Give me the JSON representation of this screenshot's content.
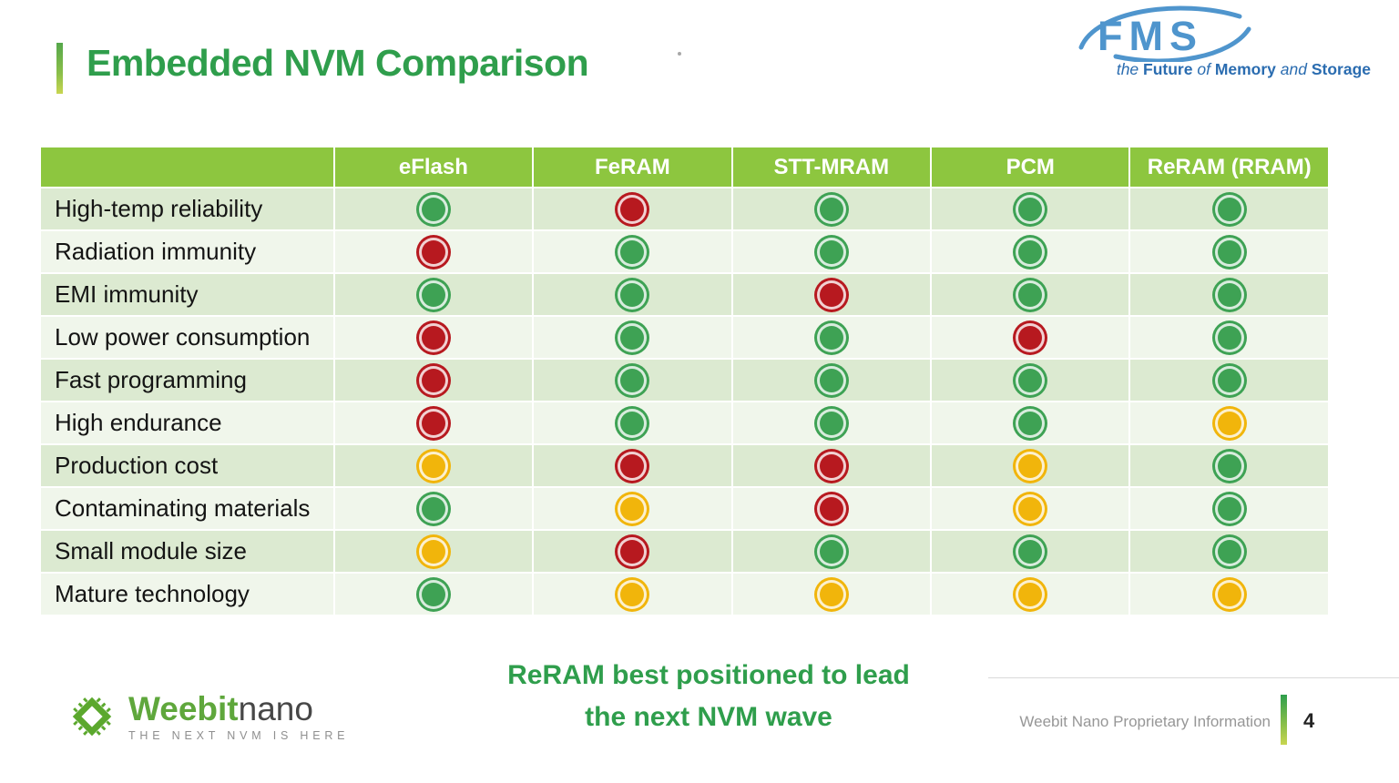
{
  "slide": {
    "title": "Embedded NVM Comparison",
    "page_number": "4"
  },
  "theme": {
    "accent_green": "#2f9e4c",
    "header_green": "#8dc63f",
    "row_dark_bg": "#dcead1",
    "row_light_bg": "#f0f6eb",
    "fms_blue": "#4f95cd",
    "fms_tagline_blue": "#2a6cb0",
    "weebit_green": "#5fa73c"
  },
  "fms_logo": {
    "acronym": "FMS",
    "tagline": [
      {
        "text": "the ",
        "emphasis": "italic"
      },
      {
        "text": "Future ",
        "emphasis": "bold"
      },
      {
        "text": "of ",
        "emphasis": "italic"
      },
      {
        "text": "Memory ",
        "emphasis": "bold"
      },
      {
        "text": "and ",
        "emphasis": "italic"
      },
      {
        "text": "Storage",
        "emphasis": "bold"
      }
    ]
  },
  "table": {
    "columns": [
      "eFlash",
      "FeRAM",
      "STT-MRAM",
      "PCM",
      "ReRAM (RRAM)"
    ],
    "rating_colors": {
      "green": "#3ea254",
      "red": "#b7191f",
      "yellow": "#f1b50b"
    },
    "rows": [
      {
        "label": "High-temp reliability",
        "ratings": [
          "green",
          "red",
          "green",
          "green",
          "green"
        ]
      },
      {
        "label": "Radiation immunity",
        "ratings": [
          "red",
          "green",
          "green",
          "green",
          "green"
        ]
      },
      {
        "label": "EMI immunity",
        "ratings": [
          "green",
          "green",
          "red",
          "green",
          "green"
        ]
      },
      {
        "label": "Low power consumption",
        "ratings": [
          "red",
          "green",
          "green",
          "red",
          "green"
        ]
      },
      {
        "label": "Fast programming",
        "ratings": [
          "red",
          "green",
          "green",
          "green",
          "green"
        ]
      },
      {
        "label": "High endurance",
        "ratings": [
          "red",
          "green",
          "green",
          "green",
          "yellow"
        ]
      },
      {
        "label": "Production cost",
        "ratings": [
          "yellow",
          "red",
          "red",
          "yellow",
          "green"
        ]
      },
      {
        "label": "Contaminating materials",
        "ratings": [
          "green",
          "yellow",
          "red",
          "yellow",
          "green"
        ]
      },
      {
        "label": "Small module size",
        "ratings": [
          "yellow",
          "red",
          "green",
          "green",
          "green"
        ]
      },
      {
        "label": "Mature technology",
        "ratings": [
          "green",
          "yellow",
          "yellow",
          "yellow",
          "yellow"
        ]
      }
    ]
  },
  "conclusion": {
    "line1": "ReRAM best positioned to lead",
    "line2": "the next NVM wave"
  },
  "footer": {
    "brand_primary": "Weebit",
    "brand_secondary": "nano",
    "brand_tagline": "THE NEXT NVM IS HERE",
    "proprietary_text": "Weebit Nano Proprietary Information"
  }
}
